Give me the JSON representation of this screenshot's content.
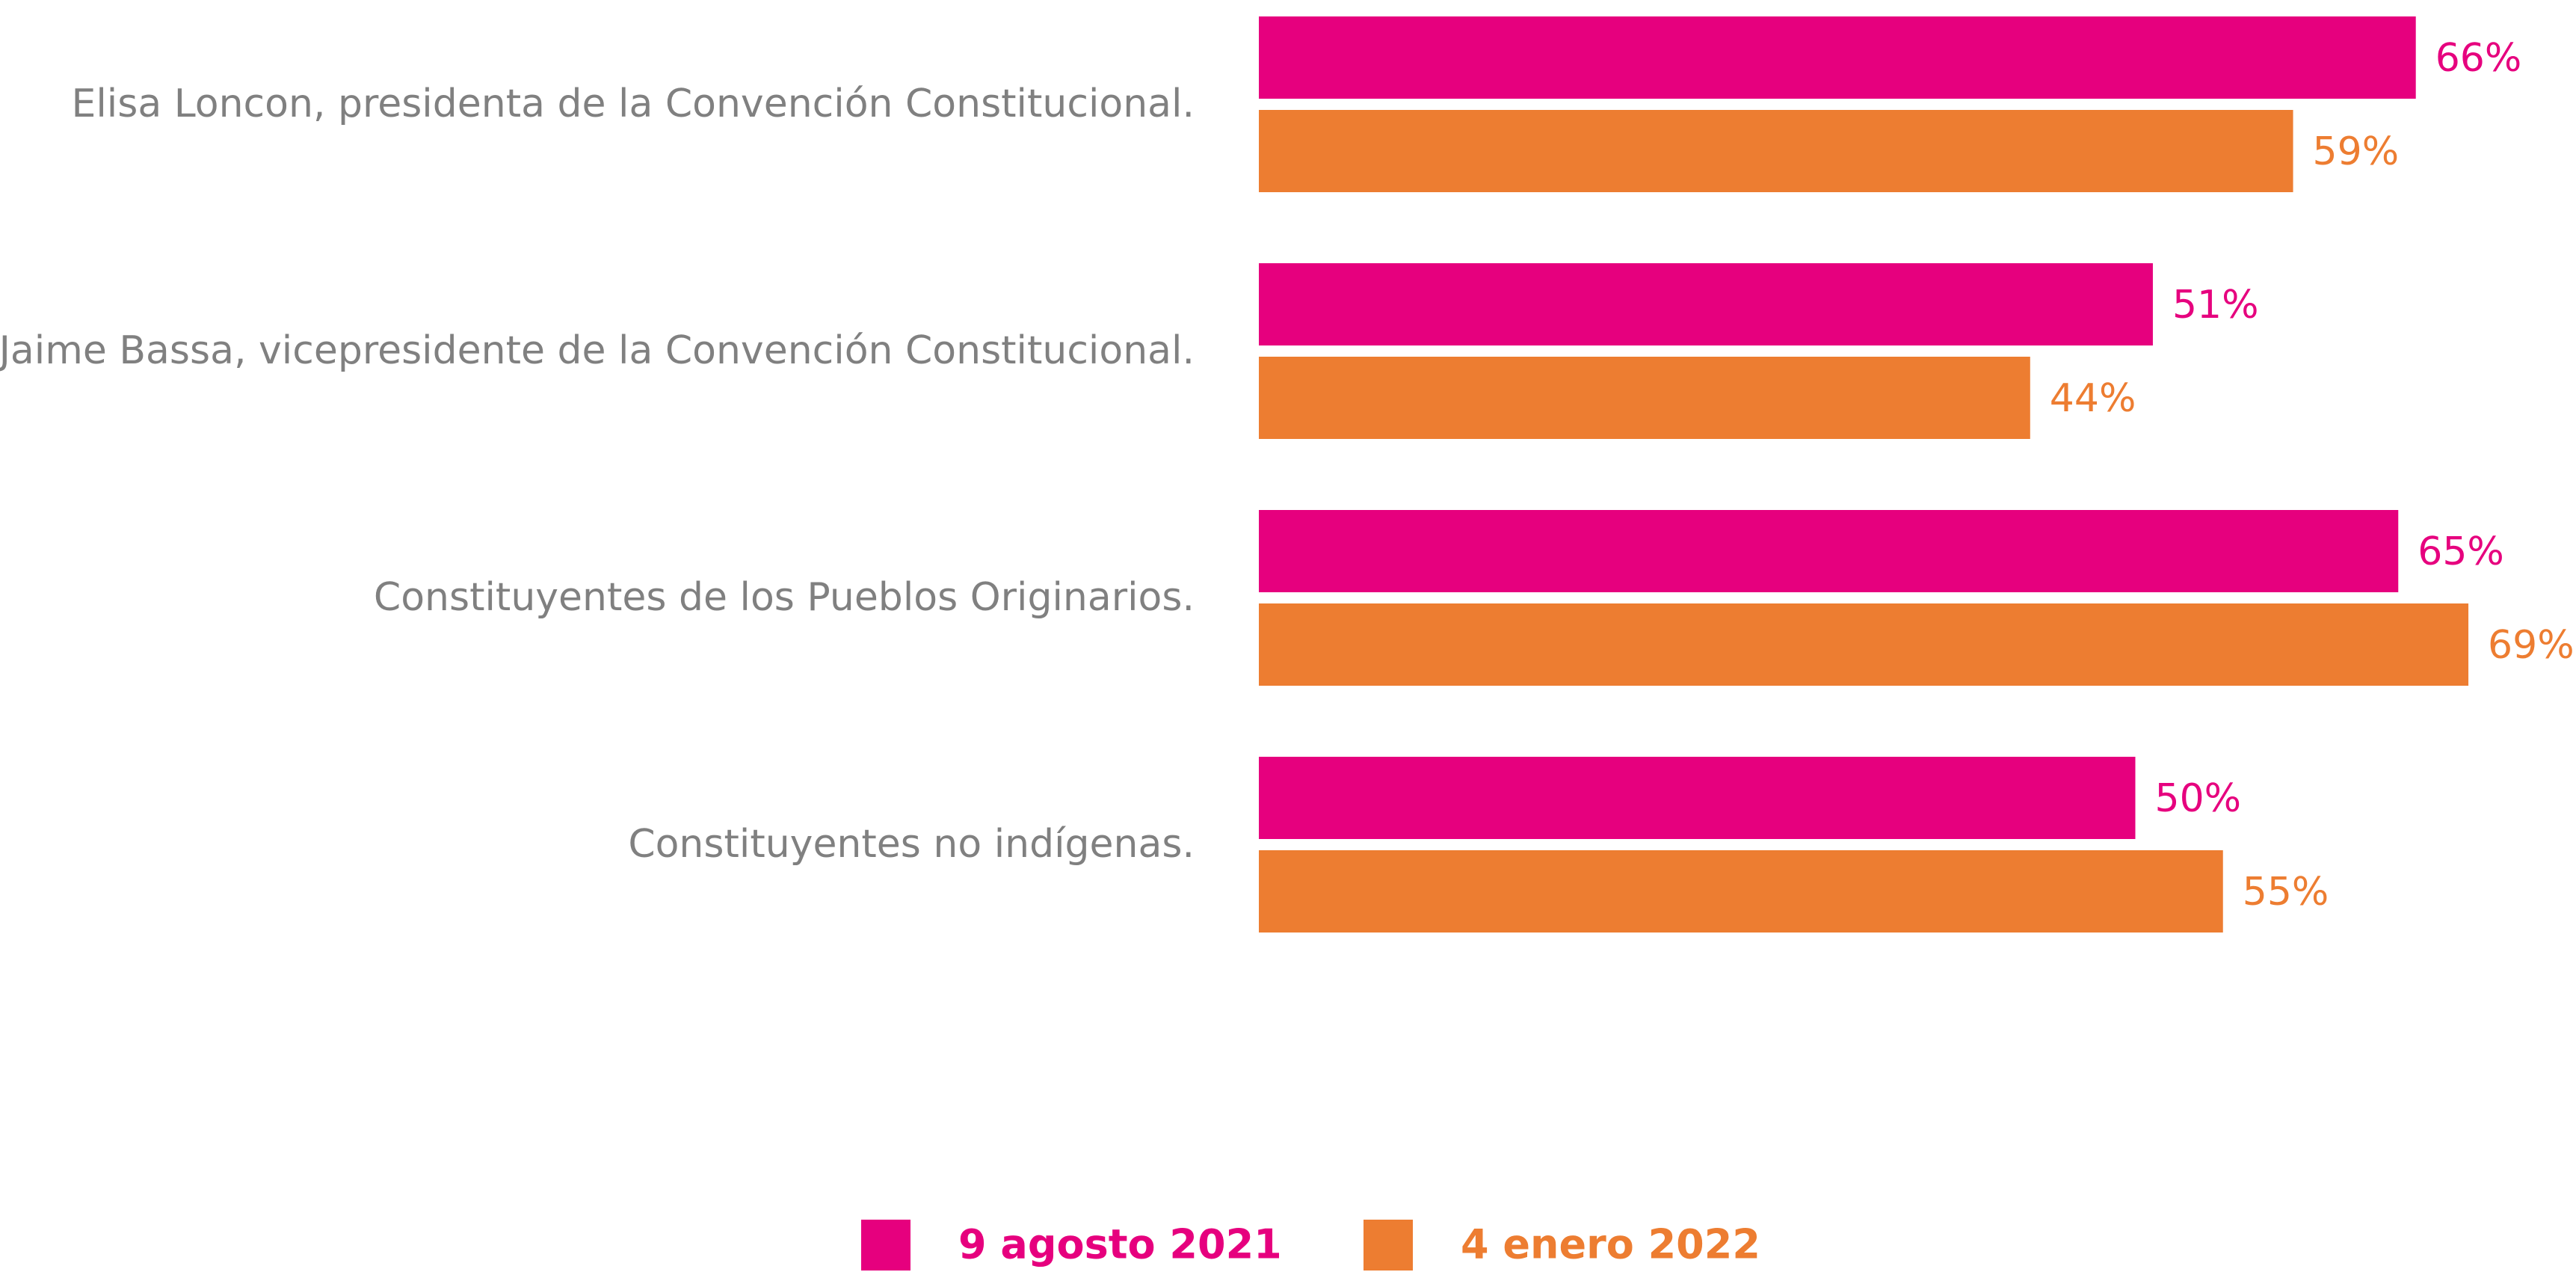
{
  "chart_data": {
    "type": "bar",
    "orientation": "horizontal",
    "categories": [
      "Elisa Loncon, presidenta de la Convención Constitucional.",
      "Jaime Bassa, vicepresidente de la Convención Constitucional.",
      "Constituyentes de los Pueblos Originarios.",
      "Constituyentes no indígenas."
    ],
    "series": [
      {
        "name": "9 agosto 2021",
        "color": "#e6007e",
        "values": [
          66,
          51,
          65,
          50
        ],
        "value_labels": [
          "66%",
          "51%",
          "65%",
          "50%"
        ]
      },
      {
        "name": "4 enero 2022",
        "color": "#ed7d31",
        "values": [
          59,
          44,
          69,
          55
        ],
        "value_labels": [
          "59%",
          "44%",
          "69%",
          "55%"
        ]
      }
    ],
    "xlim": [
      0,
      100
    ],
    "legend": "bottom"
  }
}
